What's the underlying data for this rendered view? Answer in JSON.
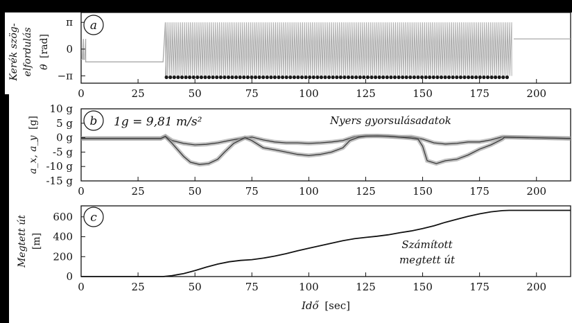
{
  "figure": {
    "xlabel_main": "Idő",
    "xlabel_unit": "[sec]"
  },
  "chart_data": [
    {
      "type": "scatter",
      "panel_label": "a",
      "ylabel_line1": "Kerék szög-",
      "ylabel_line2": "elfordulás",
      "ylabel_line3_sym": "θ",
      "ylabel_line3_unit": "[rad]",
      "xlim": [
        0,
        215
      ],
      "ylim": [
        -4.0,
        4.3
      ],
      "xticks": [
        0,
        25,
        50,
        75,
        100,
        125,
        150,
        175,
        200
      ],
      "yticks": [
        {
          "v": 3.14159,
          "label": "π"
        },
        {
          "v": 0,
          "label": "0"
        },
        {
          "v": -3.14159,
          "label": "−π"
        }
      ],
      "grid": false,
      "series": [
        {
          "x": [
            0,
            0.5,
            1.0,
            1.0,
            1.5,
            2.0,
            2.0,
            25,
            35,
            36,
            37,
            37.3
          ],
          "y": [
            -1.2,
            -1.2,
            1.2,
            -1.2,
            -1.2,
            1.2,
            -1.5,
            -1.5,
            -1.5,
            -1.5,
            3.14,
            -3.14
          ]
        },
        {
          "x": [
            190,
            215
          ],
          "y": [
            1.2,
            1.2
          ]
        }
      ],
      "oscillation": {
        "x_start": 37,
        "x_end": 189,
        "y_min": -3.14159,
        "y_max": 3.14159,
        "period": 0.85
      },
      "wrap_points": {
        "x_start": 37.5,
        "x_end": 188,
        "y": -3.14159
      },
      "line_color": "#a9a9a9",
      "marker_color": "#1a1a1a"
    },
    {
      "type": "line",
      "panel_label": "b",
      "ylabel_sym": "a_x, a_y",
      "ylabel_unit": "[g]",
      "annotation_formula": "1g = 9,81 m/s²",
      "annotation_text": "Nyers gyorsulásadatok",
      "xlim": [
        0,
        215
      ],
      "ylim": [
        -15,
        10
      ],
      "xticks": [
        0,
        25,
        50,
        75,
        100,
        125,
        150,
        175,
        200
      ],
      "yticks": [
        {
          "v": 10,
          "label": "10 g"
        },
        {
          "v": 5,
          "label": "5 g"
        },
        {
          "v": 0,
          "label": "0 g"
        },
        {
          "v": -5,
          "label": "-5 g"
        },
        {
          "v": -10,
          "label": "-10 g"
        },
        {
          "v": -15,
          "label": "-15 g"
        }
      ],
      "grid": false,
      "series": [
        {
          "name": "",
          "x": [
            0,
            35,
            37,
            40,
            45,
            50,
            55,
            60,
            65,
            70,
            75,
            80,
            85,
            90,
            95,
            100,
            105,
            110,
            115,
            120,
            125,
            130,
            135,
            140,
            145,
            150,
            155,
            160,
            165,
            170,
            175,
            180,
            185,
            186,
            215
          ],
          "y": [
            -0.3,
            -0.3,
            0.5,
            -1.0,
            -2.0,
            -2.5,
            -2.3,
            -1.8,
            -1.0,
            -0.3,
            0.2,
            -0.8,
            -1.5,
            -1.8,
            -1.8,
            -2.0,
            -1.8,
            -1.5,
            -1.0,
            0.3,
            0.6,
            0.6,
            0.4,
            0.2,
            0.3,
            -0.5,
            -1.8,
            -2.2,
            -2.0,
            -1.5,
            -1.5,
            -0.8,
            0.3,
            0.2,
            -0.3
          ]
        },
        {
          "name": "",
          "x": [
            0,
            35,
            37,
            40,
            45,
            48,
            52,
            56,
            60,
            63,
            67,
            72,
            75,
            80,
            85,
            90,
            95,
            100,
            105,
            110,
            115,
            118,
            122,
            125,
            130,
            135,
            140,
            145,
            148,
            150,
            152,
            156,
            160,
            165,
            170,
            175,
            180,
            185,
            186,
            215
          ],
          "y": [
            -0.3,
            -0.3,
            0.4,
            -2.0,
            -6.5,
            -8.5,
            -9.3,
            -9.0,
            -7.5,
            -5.0,
            -2.0,
            0.0,
            -1.0,
            -3.5,
            -4.2,
            -5.0,
            -5.8,
            -6.2,
            -5.8,
            -5.0,
            -3.5,
            -1.0,
            0.2,
            0.5,
            0.6,
            0.5,
            0.2,
            -0.2,
            -0.5,
            -3.0,
            -8.0,
            -9.0,
            -8.0,
            -7.5,
            -6.0,
            -4.0,
            -2.5,
            -0.5,
            0.2,
            -0.3
          ]
        }
      ],
      "line_color": "#3a3a3a"
    },
    {
      "type": "line",
      "panel_label": "c",
      "ylabel_line1": "Megtett út",
      "ylabel_line2": "[m]",
      "annotation_line1": "Számított",
      "annotation_line2": "megtett út",
      "xlim": [
        0,
        215
      ],
      "ylim": [
        0,
        710
      ],
      "xticks": [
        0,
        25,
        50,
        75,
        100,
        125,
        150,
        175,
        200
      ],
      "yticks": [
        {
          "v": 600,
          "label": "600"
        },
        {
          "v": 400,
          "label": "400"
        },
        {
          "v": 200,
          "label": "200"
        },
        {
          "v": 0,
          "label": "0"
        }
      ],
      "grid": false,
      "series": [
        {
          "name": "",
          "x": [
            0,
            36,
            40,
            45,
            50,
            55,
            60,
            65,
            70,
            75,
            80,
            85,
            90,
            95,
            100,
            105,
            110,
            115,
            120,
            125,
            130,
            135,
            140,
            145,
            150,
            155,
            160,
            165,
            170,
            175,
            180,
            185,
            188,
            190,
            215
          ],
          "y": [
            0,
            0,
            10,
            30,
            60,
            95,
            125,
            148,
            162,
            170,
            185,
            205,
            230,
            258,
            285,
            310,
            335,
            360,
            380,
            393,
            405,
            420,
            440,
            458,
            482,
            510,
            545,
            575,
            605,
            630,
            650,
            662,
            665,
            665,
            665
          ]
        }
      ],
      "line_color": "#111111"
    }
  ]
}
